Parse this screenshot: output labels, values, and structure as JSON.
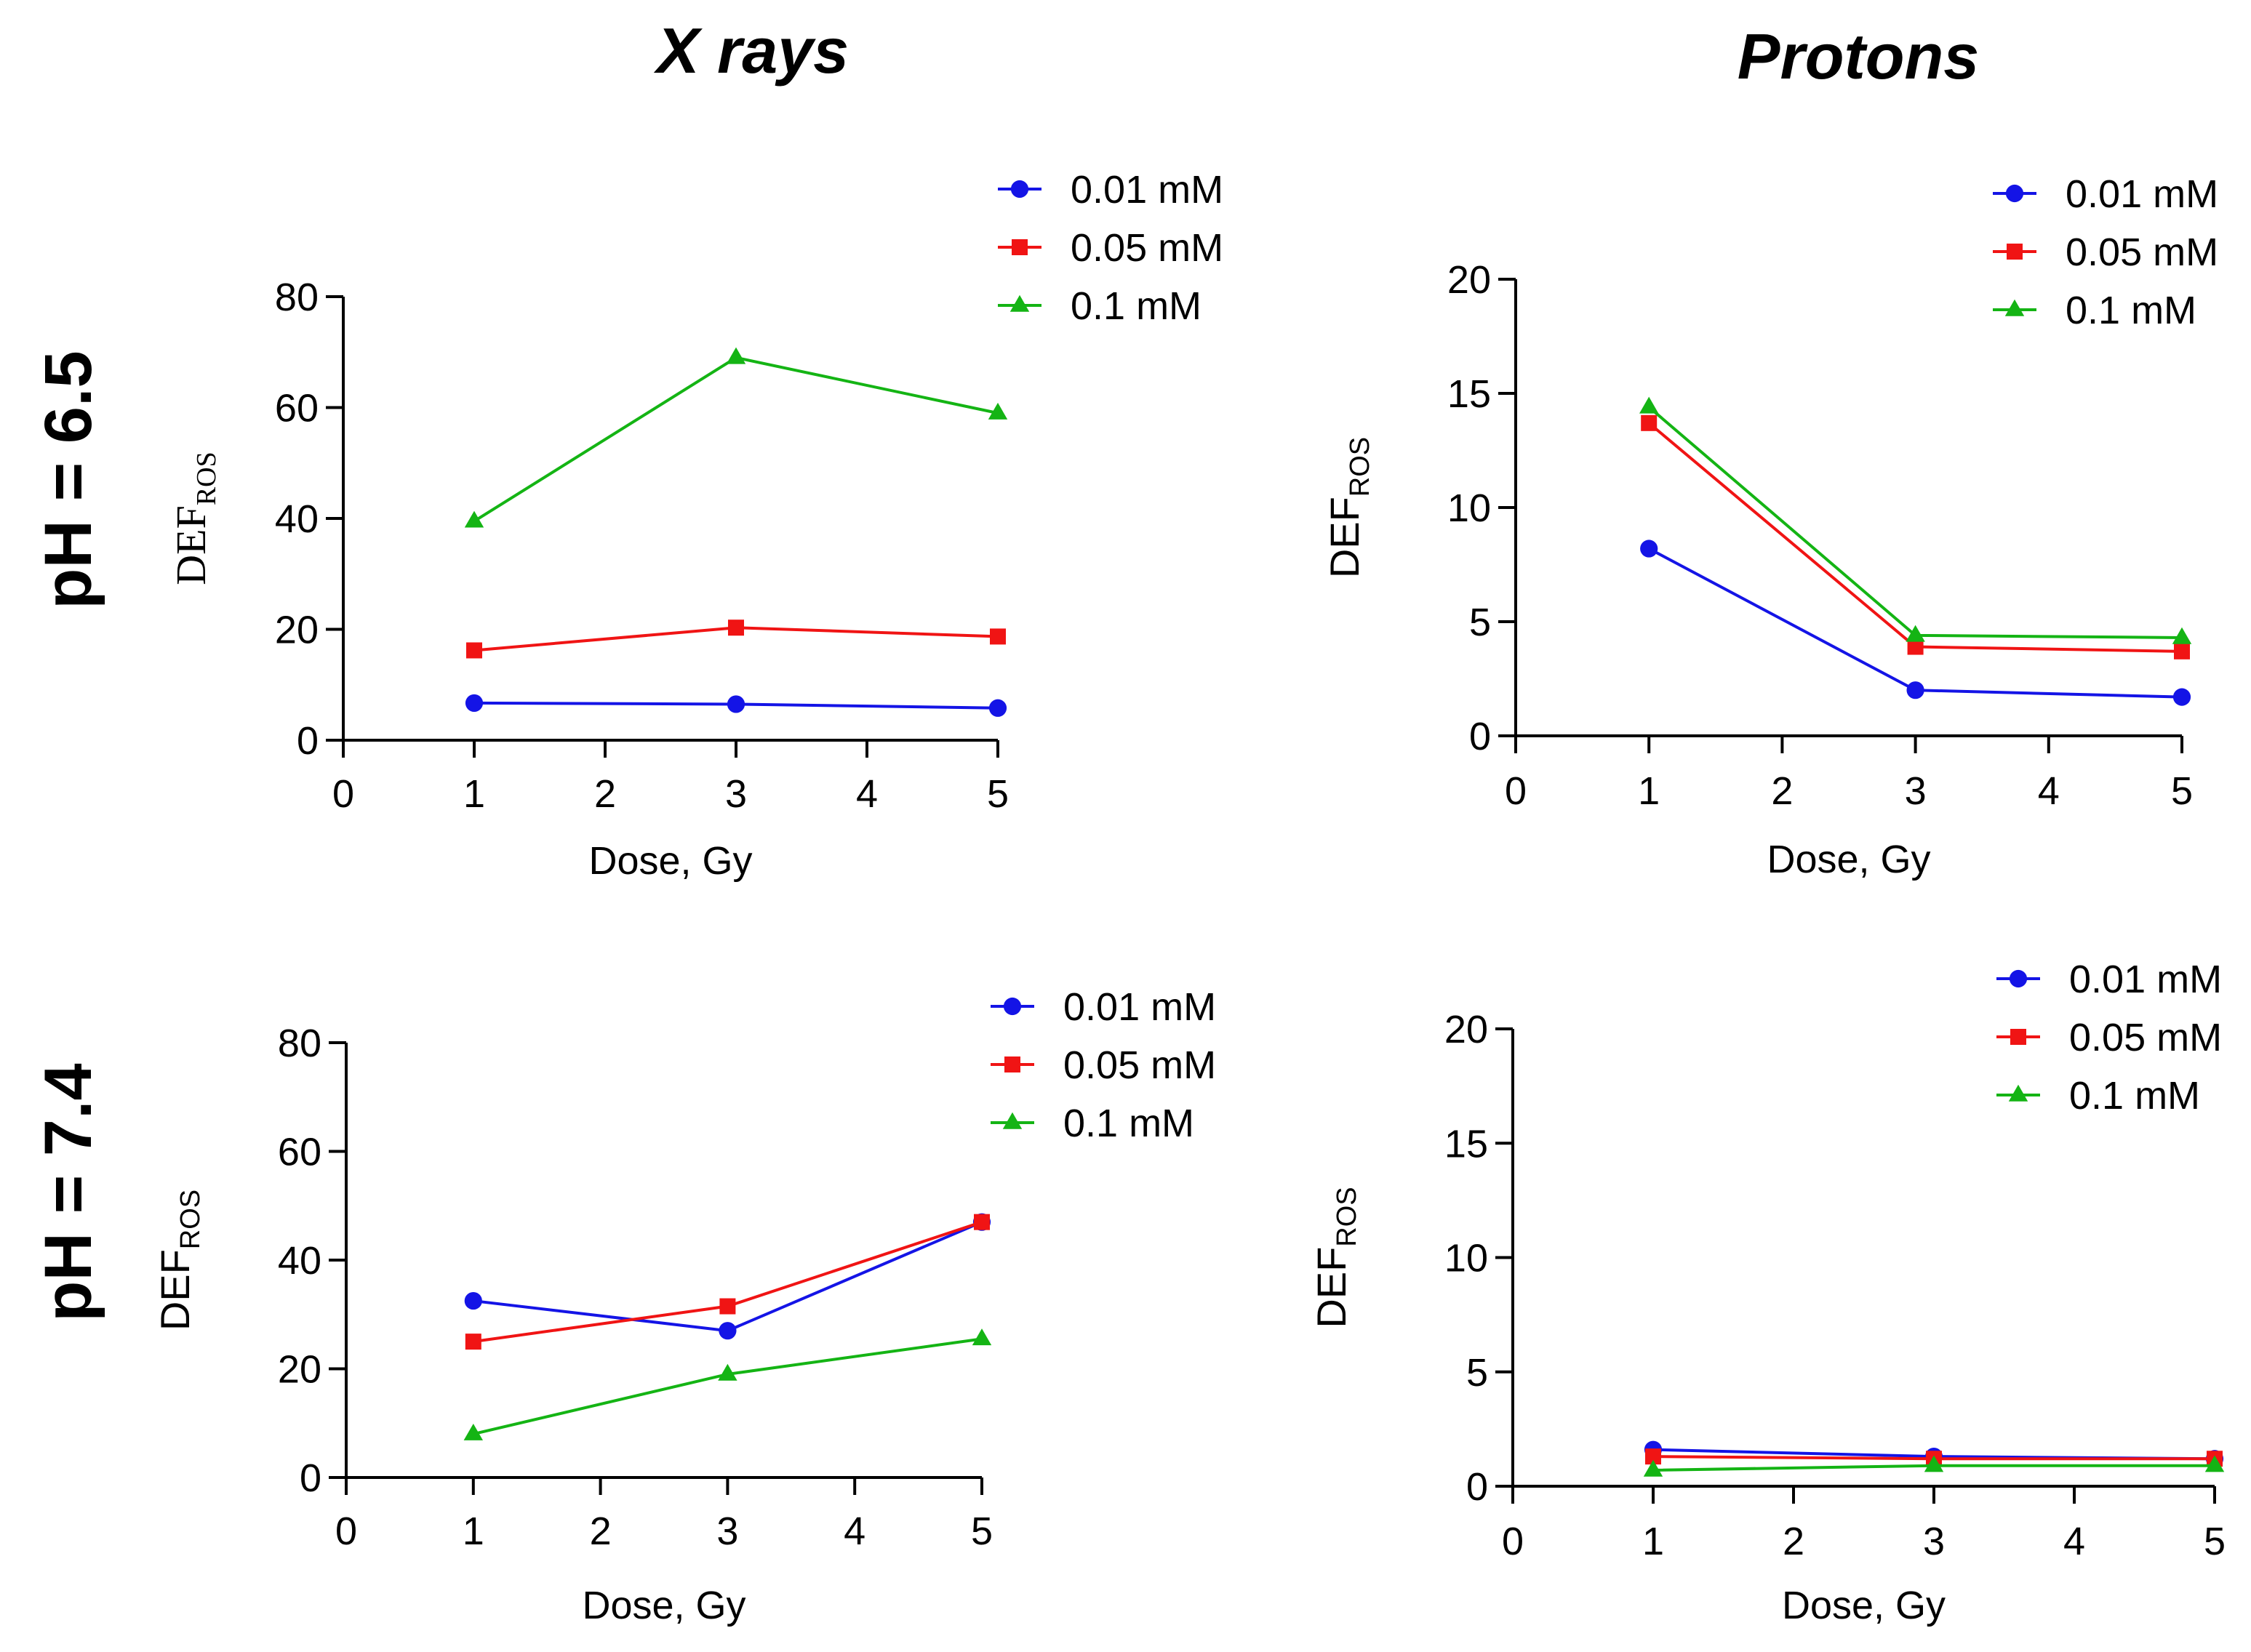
{
  "column_titles": [
    "X rays",
    "Protons"
  ],
  "row_titles": [
    "pH = 6.5",
    "pH = 7.4"
  ],
  "colors": {
    "0.01 mM": "#1414e6",
    "0.05 mM": "#f01414",
    "0.1 mM": "#14b414"
  },
  "chart_data": [
    {
      "type": "line",
      "panel": "X rays, pH = 6.5",
      "x": [
        1,
        3,
        5
      ],
      "xlim": [
        0,
        5
      ],
      "xticks": [
        0,
        1,
        2,
        3,
        4,
        5
      ],
      "ylim": [
        0,
        80
      ],
      "yticks": [
        0,
        20,
        40,
        60,
        80
      ],
      "xlabel": "Dose, Gy",
      "ylabel": "DEF",
      "ylabel_sub": "ROS",
      "series": [
        {
          "name": "0.01 mM",
          "marker": "circle",
          "values": [
            6.7,
            6.5,
            5.8
          ]
        },
        {
          "name": "0.05 mM",
          "marker": "square",
          "values": [
            16.2,
            20.3,
            18.7
          ]
        },
        {
          "name": "0.1 mM",
          "marker": "triangle",
          "values": [
            39.5,
            69,
            59
          ]
        }
      ],
      "legend": "top-right"
    },
    {
      "type": "line",
      "panel": "Protons, pH = 6.5",
      "x": [
        1,
        3,
        5
      ],
      "xlim": [
        0,
        5
      ],
      "xticks": [
        0,
        1,
        2,
        3,
        4,
        5
      ],
      "ylim": [
        0,
        20
      ],
      "yticks": [
        0,
        5,
        10,
        15,
        20
      ],
      "xlabel": "Dose, Gy",
      "ylabel": "DEF",
      "ylabel_sub": "ROS",
      "series": [
        {
          "name": "0.01 mM",
          "marker": "circle",
          "values": [
            8.2,
            2.0,
            1.7
          ]
        },
        {
          "name": "0.05 mM",
          "marker": "square",
          "values": [
            13.7,
            3.9,
            3.7
          ]
        },
        {
          "name": "0.1 mM",
          "marker": "triangle",
          "values": [
            14.4,
            4.4,
            4.3
          ]
        }
      ],
      "legend": "top-right"
    },
    {
      "type": "line",
      "panel": "X rays, pH = 7.4",
      "x": [
        1,
        3,
        5
      ],
      "xlim": [
        0,
        5
      ],
      "xticks": [
        0,
        1,
        2,
        3,
        4,
        5
      ],
      "ylim": [
        0,
        80
      ],
      "yticks": [
        0,
        20,
        40,
        60,
        80
      ],
      "xlabel": "Dose, Gy",
      "ylabel": "DEF",
      "ylabel_sub": "ROS",
      "series": [
        {
          "name": "0.01 mM",
          "marker": "circle",
          "values": [
            32.5,
            27,
            47
          ]
        },
        {
          "name": "0.05 mM",
          "marker": "square",
          "values": [
            25,
            31.5,
            47
          ]
        },
        {
          "name": "0.1 mM",
          "marker": "triangle",
          "values": [
            8,
            19,
            25.5
          ]
        }
      ],
      "legend": "top-right"
    },
    {
      "type": "line",
      "panel": "Protons, pH = 7.4",
      "x": [
        1,
        3,
        5
      ],
      "xlim": [
        0,
        5
      ],
      "xticks": [
        0,
        1,
        2,
        3,
        4,
        5
      ],
      "ylim": [
        0,
        20
      ],
      "yticks": [
        0,
        5,
        10,
        15,
        20
      ],
      "xlabel": "Dose, Gy",
      "ylabel": "DEF",
      "ylabel_sub": "ROS",
      "series": [
        {
          "name": "0.01 mM",
          "marker": "circle",
          "values": [
            1.6,
            1.3,
            1.2
          ]
        },
        {
          "name": "0.05 mM",
          "marker": "square",
          "values": [
            1.3,
            1.2,
            1.2
          ]
        },
        {
          "name": "0.1 mM",
          "marker": "triangle",
          "values": [
            0.7,
            0.9,
            0.9
          ]
        }
      ],
      "legend": "top-right"
    }
  ]
}
